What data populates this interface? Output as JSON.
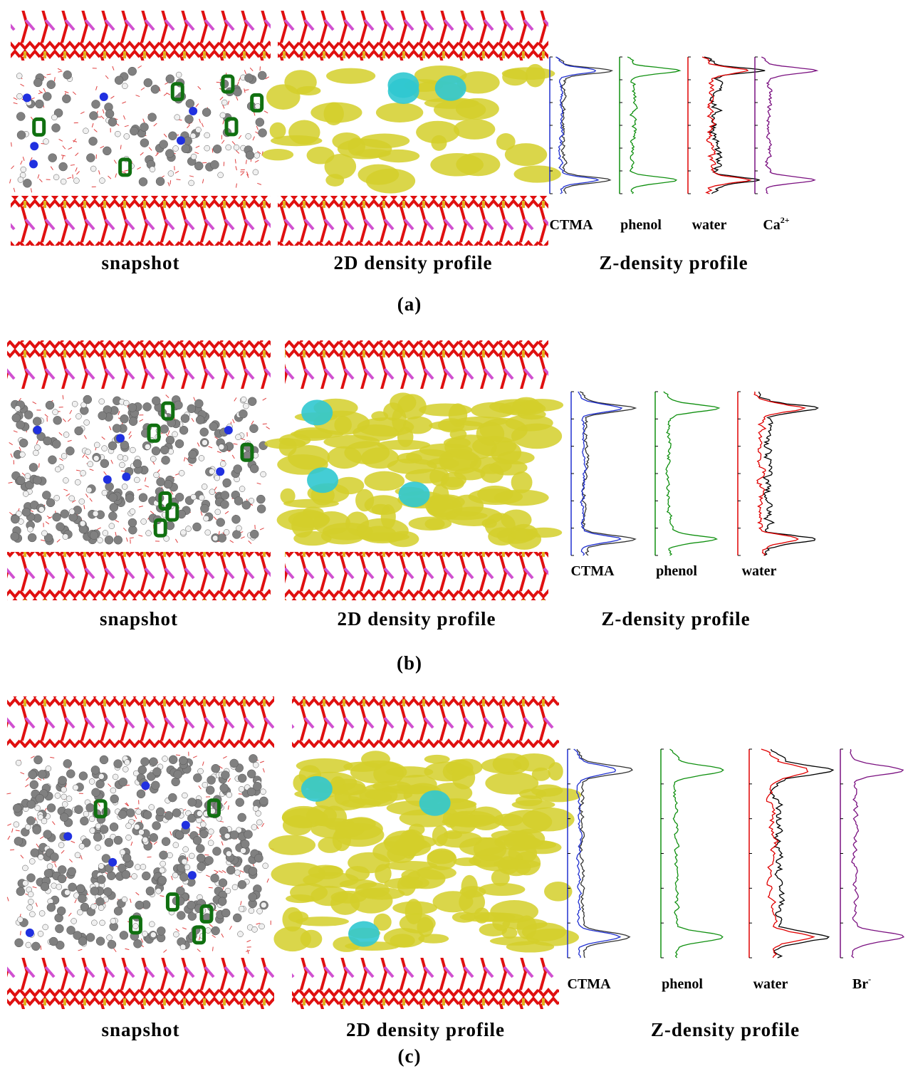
{
  "panels": [
    {
      "label": "(a)",
      "captions": [
        "snapshot",
        "2D density profile",
        "Z-density profile"
      ],
      "profiles": [
        {
          "base": "CTMA"
        },
        {
          "base": "phenol"
        },
        {
          "base": "water"
        },
        {
          "base": "Ca",
          "sup": "2+"
        }
      ]
    },
    {
      "label": "(b)",
      "captions": [
        "snapshot",
        "2D density profile",
        "Z-density profile"
      ],
      "profiles": [
        {
          "base": "CTMA"
        },
        {
          "base": "phenol"
        },
        {
          "base": "water"
        }
      ]
    },
    {
      "label": "(c)",
      "captions": [
        "snapshot",
        "2D density profile",
        "Z-density profile"
      ],
      "profiles": [
        {
          "base": "CTMA"
        },
        {
          "base": "phenol"
        },
        {
          "base": "water"
        },
        {
          "base": "Br",
          "sup": "-"
        }
      ]
    }
  ]
}
